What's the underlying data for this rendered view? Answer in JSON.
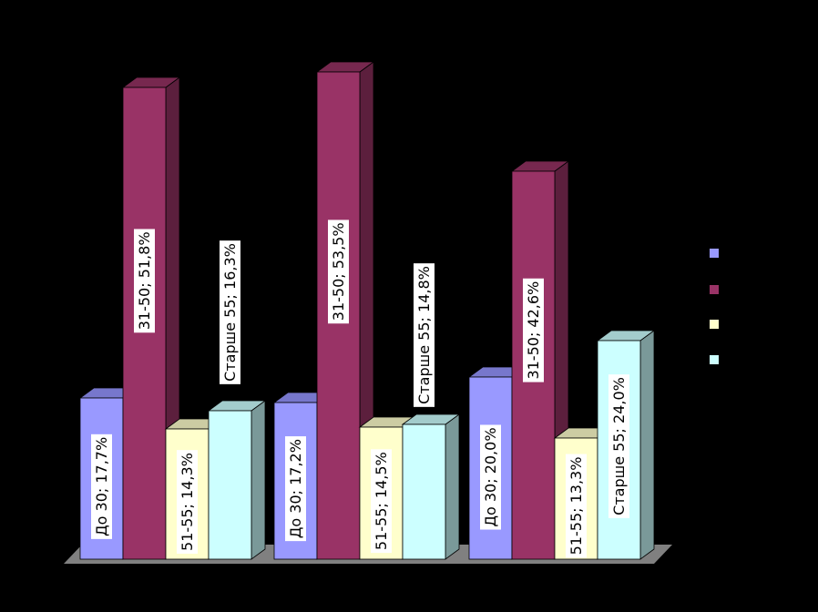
{
  "chart_data": {
    "type": "bar",
    "title": "",
    "categories": [
      "",
      "",
      ""
    ],
    "ylim": [
      0,
      60
    ],
    "grid": false,
    "legend_position": "right",
    "series": [
      {
        "name": "",
        "values": [
          17.7,
          17.2,
          20.0
        ],
        "labels": [
          "До 30; 17,7%",
          "До 30; 17,2%",
          "До 30; 20,0%"
        ]
      },
      {
        "name": "",
        "values": [
          51.8,
          53.5,
          42.6
        ],
        "labels": [
          "31-50; 51,8%",
          "31-50; 53,5%",
          "31-50; 42,6%"
        ]
      },
      {
        "name": "",
        "values": [
          14.3,
          14.5,
          13.3
        ],
        "labels": [
          "51-55; 14,3%",
          "51-55; 14,5%",
          "51-55; 13,3%"
        ]
      },
      {
        "name": "",
        "values": [
          16.3,
          14.8,
          24.0
        ],
        "labels": [
          "Старше 55; 16,3%",
          "Старше 55; 14,8%",
          "Старше 55; 24,0%"
        ]
      }
    ],
    "colors": {
      "front": [
        "#9999ff",
        "#993366",
        "#ffffcc",
        "#ccffff"
      ],
      "top": [
        "#7777cc",
        "#77284f",
        "#cccca3",
        "#a3cccc"
      ],
      "side": [
        "#5c5c99",
        "#5c1f3d",
        "#99997a",
        "#7a9999"
      ],
      "floor": "#808080",
      "label_bg": "#ffffff"
    }
  }
}
